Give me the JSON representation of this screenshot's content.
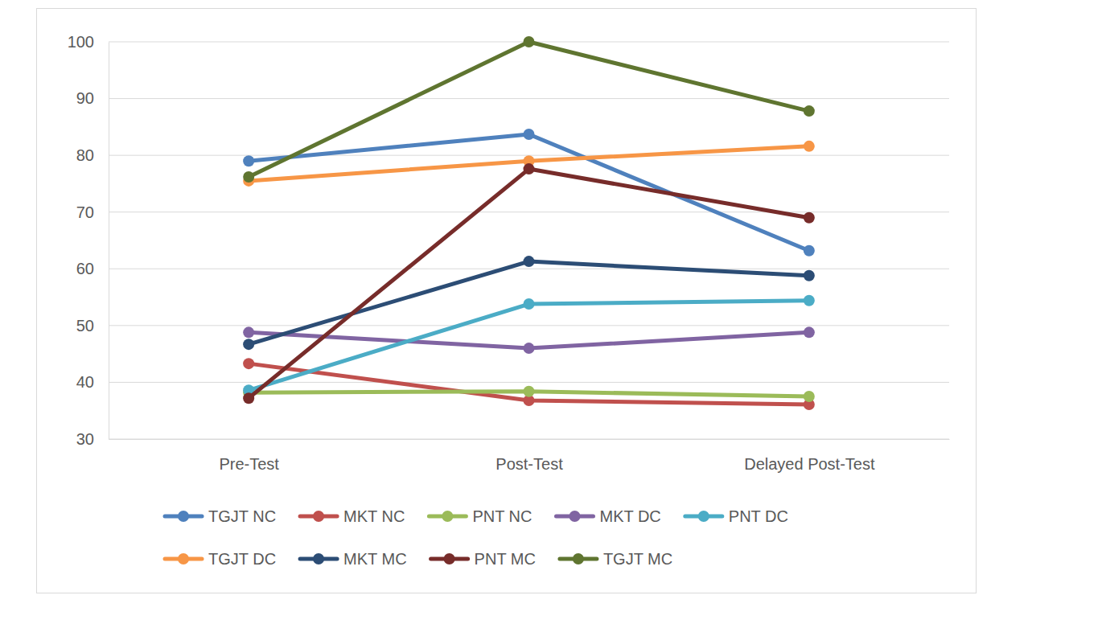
{
  "chart_data": {
    "type": "line",
    "categories": [
      "Pre-Test",
      "Post-Test",
      "Delayed Post-Test"
    ],
    "series": [
      {
        "name": "TGJT NC",
        "color": "#4f81bd",
        "values": [
          79.0,
          83.7,
          63.2
        ]
      },
      {
        "name": "MKT NC",
        "color": "#c0504d",
        "values": [
          43.3,
          36.8,
          36.1
        ]
      },
      {
        "name": "PNT NC",
        "color": "#9bbb59",
        "values": [
          38.2,
          38.4,
          37.5
        ]
      },
      {
        "name": "MKT DC",
        "color": "#8064a2",
        "values": [
          48.8,
          46.0,
          48.8
        ]
      },
      {
        "name": "PNT DC",
        "color": "#4bacc6",
        "values": [
          38.6,
          53.8,
          54.4
        ]
      },
      {
        "name": "TGJT DC",
        "color": "#f79646",
        "values": [
          75.5,
          79.0,
          81.6
        ]
      },
      {
        "name": "MKT MC",
        "color": "#2c4d75",
        "values": [
          46.7,
          61.3,
          58.8
        ]
      },
      {
        "name": "PNT MC",
        "color": "#772c2a",
        "values": [
          37.2,
          77.6,
          69.0
        ]
      },
      {
        "name": "TGJT MC",
        "color": "#5f7530",
        "values": [
          76.2,
          100,
          87.8
        ]
      }
    ],
    "ylim": [
      30,
      100
    ],
    "yticks": [
      30,
      40,
      50,
      60,
      70,
      80,
      90,
      100
    ],
    "grid": true,
    "legend": "bottom",
    "marker": "circle",
    "line_style": "solid"
  }
}
